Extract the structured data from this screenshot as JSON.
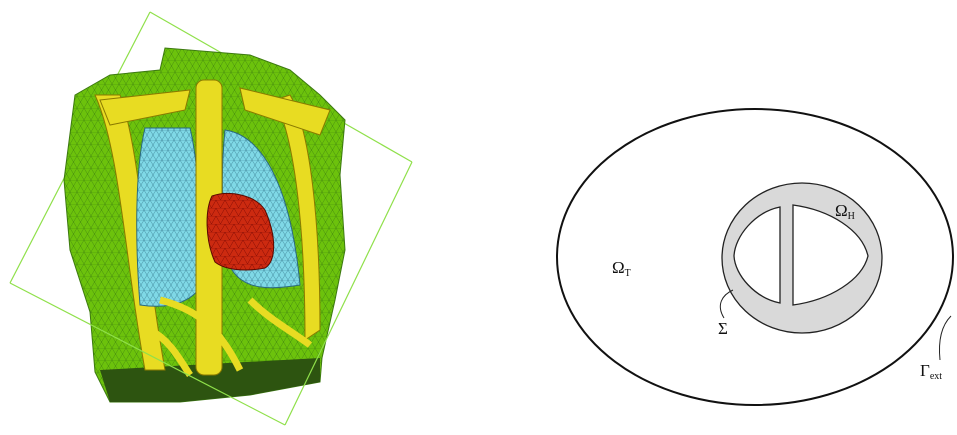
{
  "labels": {
    "omega_t": {
      "symbol": "Ω",
      "subscript": "T"
    },
    "omega_h": {
      "symbol": "Ω",
      "subscript": "H"
    },
    "sigma": {
      "symbol": "Σ"
    },
    "gamma_ext": {
      "symbol": "Γ",
      "subscript": "ext"
    }
  }
}
